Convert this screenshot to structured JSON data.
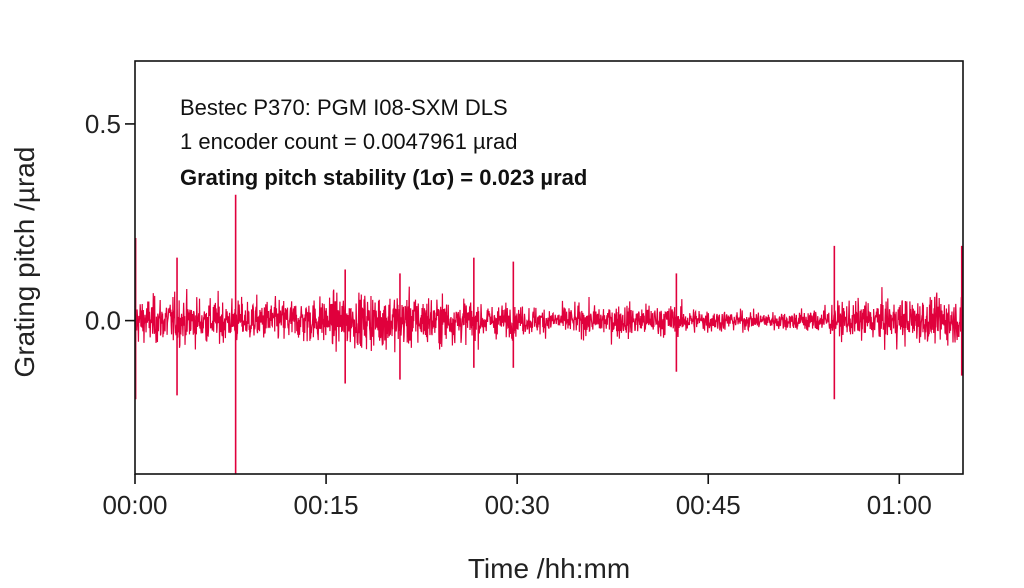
{
  "chart_data": {
    "type": "line",
    "xlabel": "Time /hh:mm",
    "ylabel": "Grating pitch /µrad",
    "x_range_minutes": [
      0,
      65
    ],
    "ylim": [
      -0.39,
      0.66
    ],
    "x_ticks": [
      {
        "minutes": 0,
        "label": "00:00"
      },
      {
        "minutes": 15,
        "label": "00:15"
      },
      {
        "minutes": 30,
        "label": "00:30"
      },
      {
        "minutes": 45,
        "label": "00:45"
      },
      {
        "minutes": 60,
        "label": "01:00"
      }
    ],
    "y_ticks": [
      {
        "value": 0.0,
        "label": "0.0"
      },
      {
        "value": 0.5,
        "label": "0.5"
      }
    ],
    "annotations": [
      {
        "text": "Bestec P370: PGM I08-SXM DLS",
        "bold": false
      },
      {
        "text": "1 encoder count = 0.0047961 µrad",
        "bold": false
      },
      {
        "text": "Grating pitch stability (1σ) = 0.023 µrad",
        "bold": true
      }
    ],
    "grid": false,
    "legend": "none",
    "series_color": "#e0003c",
    "series": [
      {
        "noise_sigma": 0.023,
        "spikes": [
          {
            "minutes": 0.05,
            "high": 0.21,
            "low": -0.2
          },
          {
            "minutes": 3.3,
            "high": 0.16,
            "low": -0.19
          },
          {
            "minutes": 7.9,
            "high": 0.32,
            "low": -0.4
          },
          {
            "minutes": 16.5,
            "high": 0.13,
            "low": -0.16
          },
          {
            "minutes": 20.8,
            "high": 0.12,
            "low": -0.15
          },
          {
            "minutes": 26.6,
            "high": 0.16,
            "low": -0.12
          },
          {
            "minutes": 29.7,
            "high": 0.15,
            "low": -0.12
          },
          {
            "minutes": 42.5,
            "high": 0.12,
            "low": -0.13
          },
          {
            "minutes": 54.9,
            "high": 0.19,
            "low": -0.2
          },
          {
            "minutes": 64.9,
            "high": 0.19,
            "low": -0.14
          }
        ]
      }
    ]
  }
}
